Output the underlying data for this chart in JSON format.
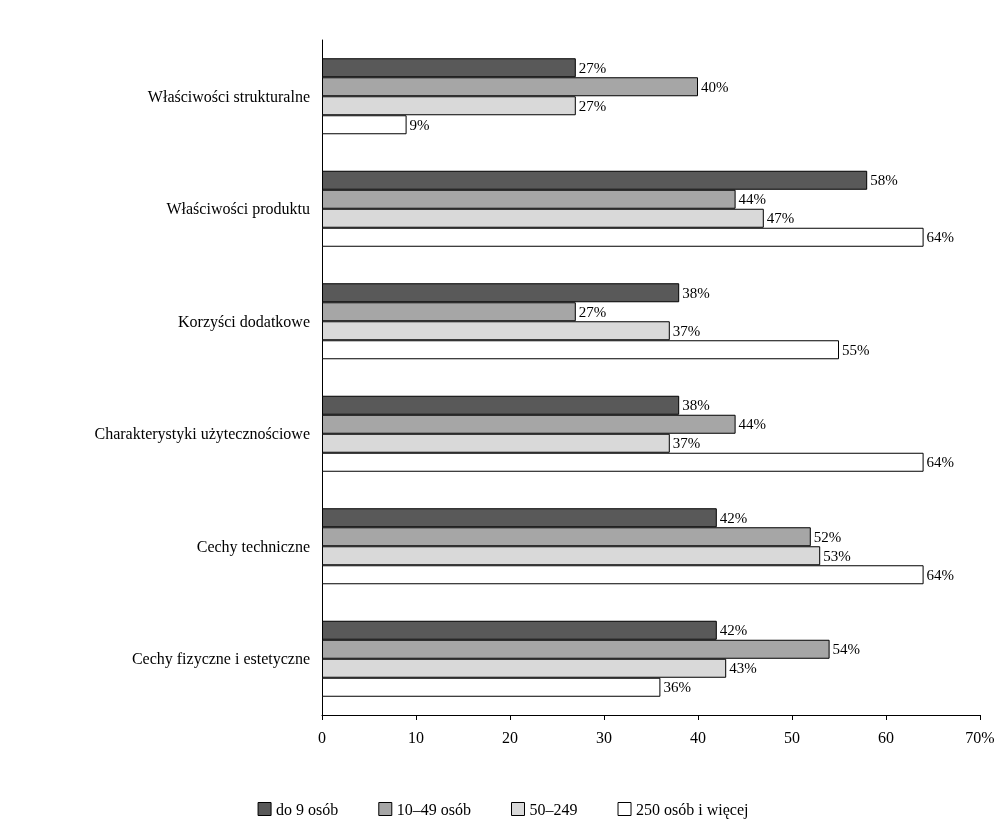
{
  "chart_data": {
    "type": "bar",
    "orientation": "horizontal",
    "categories": [
      "Właściwości strukturalne",
      "Właściwości produktu",
      "Korzyści dodatkowe",
      "Charakterystyki użytecznościowe",
      "Cechy techniczne",
      "Cechy fizyczne i estetyczne"
    ],
    "series": [
      {
        "name": "do 9 osób",
        "color": "#595959",
        "values": [
          27,
          58,
          38,
          38,
          42,
          42
        ],
        "value_labels": [
          "27%",
          "58%",
          "38%",
          "38%",
          "42%",
          "42%"
        ]
      },
      {
        "name": "10–49 osób",
        "color": "#a6a6a6",
        "values": [
          40,
          44,
          27,
          44,
          52,
          54
        ],
        "value_labels": [
          "40%",
          "44%",
          "27%",
          "44%",
          "52%",
          "54%"
        ]
      },
      {
        "name": "50–249",
        "color": "#d9d9d9",
        "values": [
          27,
          47,
          37,
          37,
          53,
          43
        ],
        "value_labels": [
          "27%",
          "47%",
          "37%",
          "37%",
          "53%",
          "43%"
        ]
      },
      {
        "name": "250 osób i więcej",
        "color": "#ffffff",
        "values": [
          9,
          64,
          55,
          64,
          64,
          36
        ],
        "value_labels": [
          "9%",
          "64%",
          "55%",
          "64%",
          "64%",
          "36%"
        ]
      }
    ],
    "xlim": [
      0,
      70
    ],
    "xticks": [
      0,
      10,
      20,
      30,
      40,
      50,
      60,
      {
        "value": 70,
        "label": "70%"
      }
    ],
    "grid": false,
    "legend": "bottom"
  }
}
